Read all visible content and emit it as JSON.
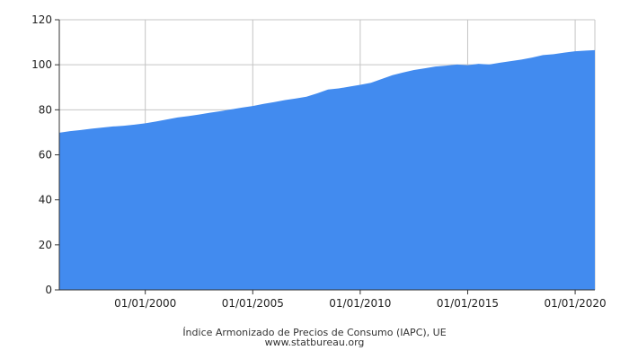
{
  "chart_data": {
    "type": "area",
    "title": "Índice Armonizado de Precios de Consumo (IAPC), UE",
    "source": "www.statbureau.org",
    "xlabel": "",
    "ylabel": "",
    "x_tick_labels": [
      "01/01/2000",
      "01/01/2005",
      "01/01/2010",
      "01/01/2015",
      "01/01/2020"
    ],
    "y_tick_labels": [
      "0",
      "20",
      "40",
      "60",
      "80",
      "100",
      "120"
    ],
    "xlim": [
      "1996-01",
      "2020-12"
    ],
    "ylim": [
      0,
      120
    ],
    "grid": true,
    "legend": "none",
    "colors": {
      "fill": "#428bef",
      "grid": "#c4c4c4",
      "axis": "#333333"
    },
    "series": [
      {
        "x": [
          "1996-01",
          "1996-07",
          "1997-01",
          "1997-07",
          "1998-01",
          "1998-07",
          "1999-01",
          "1999-07",
          "2000-01",
          "2000-07",
          "2001-01",
          "2001-07",
          "2002-01",
          "2002-07",
          "2003-01",
          "2003-07",
          "2004-01",
          "2004-07",
          "2005-01",
          "2005-07",
          "2006-01",
          "2006-07",
          "2007-01",
          "2007-07",
          "2008-01",
          "2008-07",
          "2009-01",
          "2009-07",
          "2010-01",
          "2010-07",
          "2011-01",
          "2011-07",
          "2012-01",
          "2012-07",
          "2013-01",
          "2013-07",
          "2014-01",
          "2014-07",
          "2015-01",
          "2015-07",
          "2016-01",
          "2016-07",
          "2017-01",
          "2017-07",
          "2018-01",
          "2018-07",
          "2019-01",
          "2019-07",
          "2020-01",
          "2020-07",
          "2020-12"
        ],
        "values": [
          69.8,
          70.5,
          71.0,
          71.6,
          72.1,
          72.6,
          72.9,
          73.4,
          74.0,
          74.8,
          75.7,
          76.6,
          77.2,
          77.9,
          78.7,
          79.4,
          80.2,
          81.0,
          81.7,
          82.6,
          83.4,
          84.3,
          85.0,
          85.8,
          87.3,
          89.0,
          89.5,
          90.3,
          91.1,
          92.0,
          93.7,
          95.4,
          96.6,
          97.7,
          98.4,
          99.2,
          99.6,
          100.1,
          99.8,
          100.4,
          100.1,
          100.9,
          101.6,
          102.3,
          103.2,
          104.3,
          104.7,
          105.4,
          106.0,
          106.3,
          106.5
        ]
      }
    ]
  }
}
